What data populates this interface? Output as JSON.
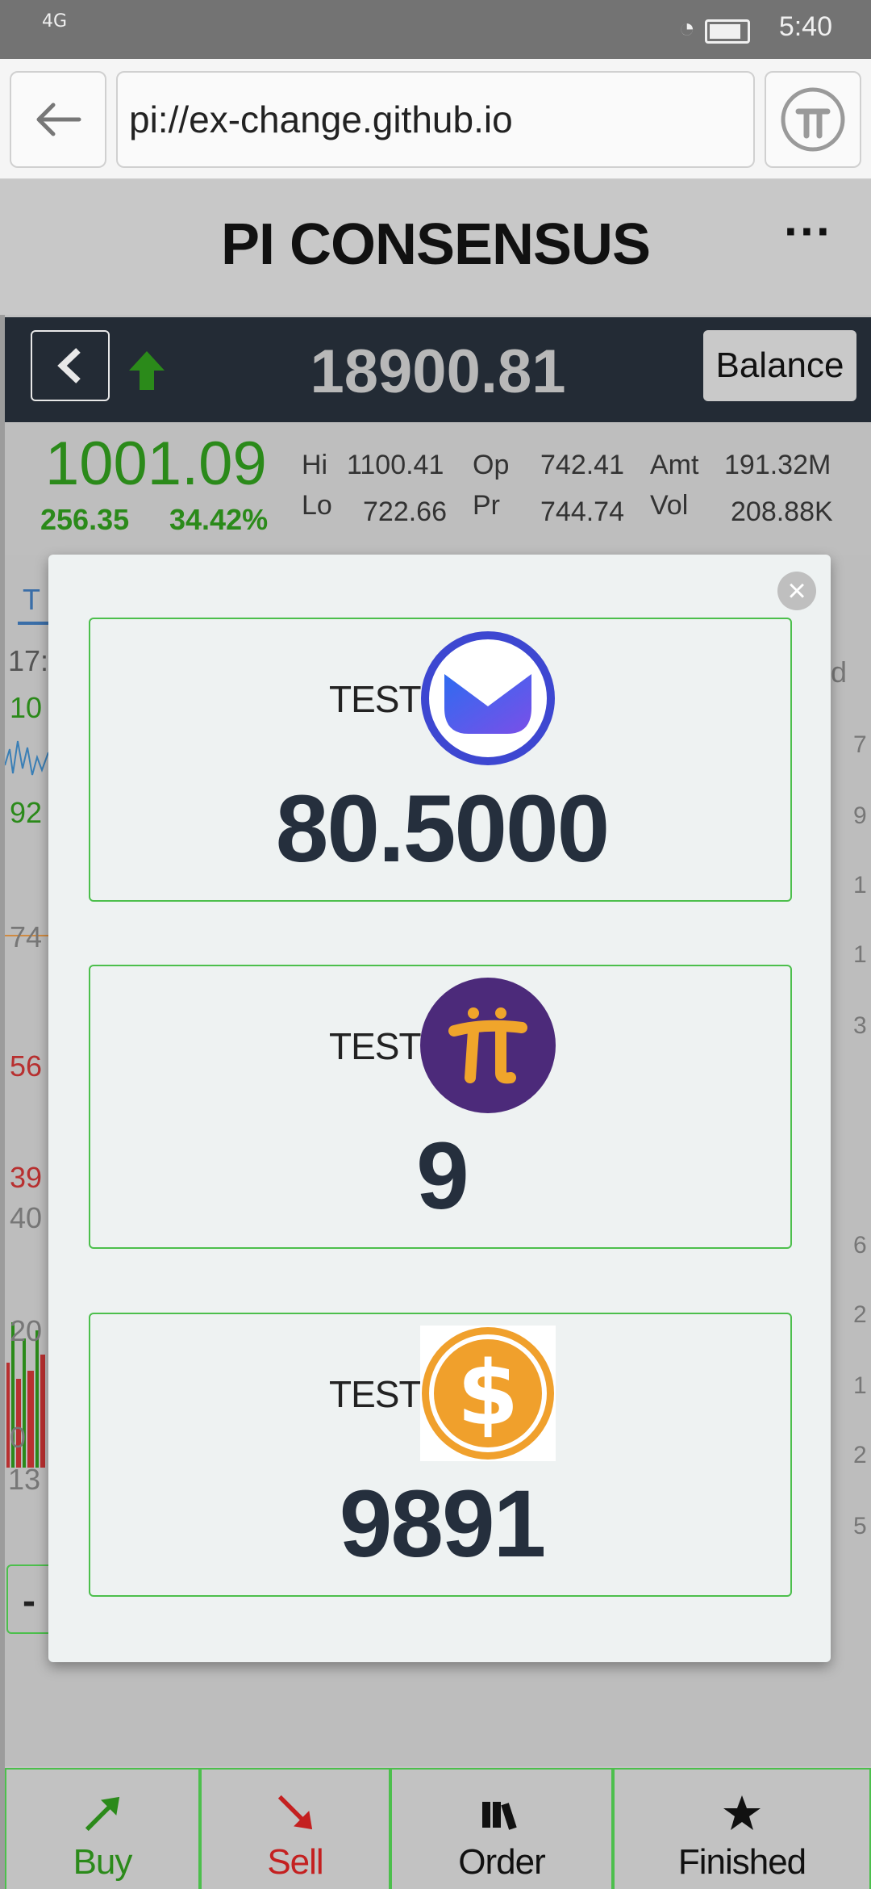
{
  "status_bar": {
    "network": "4G",
    "time": "5:40"
  },
  "browser": {
    "url": "pi://ex-change.github.io"
  },
  "header": {
    "title": "PI CONSENSUS",
    "more_label": "···"
  },
  "ticker": {
    "price": "18900.81",
    "balance_label": "Balance"
  },
  "stats": {
    "last": "1001.09",
    "change": "256.35",
    "change_pct": "34.42%",
    "hi_label": "Hi",
    "hi": "1100.41",
    "lo_label": "Lo",
    "lo": "722.66",
    "op_label": "Op",
    "op": "742.41",
    "pr_label": "Pr",
    "pr": "744.74",
    "amt_label": "Amt",
    "amt": "191.32M",
    "vol_label": "Vol",
    "vol": "208.88K"
  },
  "background": {
    "tab_initial": "T",
    "time_partial": "17:",
    "left_values": [
      "10",
      "92",
      "74",
      "56",
      "39",
      "40",
      "20",
      "0",
      "13"
    ],
    "right_values": [
      "d",
      "7",
      "9",
      "1",
      "1",
      "3",
      "6",
      "2",
      "1",
      "2",
      "5"
    ],
    "minus_button": "-"
  },
  "modal": {
    "close_label": "×",
    "cards": [
      {
        "label": "TEST",
        "icon": "blue-chevron-coin-icon",
        "value": "80.5000"
      },
      {
        "label": "TEST",
        "icon": "pi-coin-icon",
        "value": "9"
      },
      {
        "label": "TEST",
        "icon": "dollar-coin-icon",
        "value": "9891"
      }
    ]
  },
  "bottom_nav": [
    {
      "label": "Buy",
      "icon": "buy-arrow-icon",
      "color": "#2b8a1a"
    },
    {
      "label": "Sell",
      "icon": "sell-arrow-icon",
      "color": "#c42020"
    },
    {
      "label": "Order",
      "icon": "books-icon",
      "color": "#111111"
    },
    {
      "label": "Finished",
      "icon": "star-icon",
      "color": "#111111"
    }
  ],
  "colors": {
    "accent_green": "#4cbf4c",
    "up": "#2b8a1a",
    "down": "#b83030",
    "ticker_bg": "#232b35"
  }
}
